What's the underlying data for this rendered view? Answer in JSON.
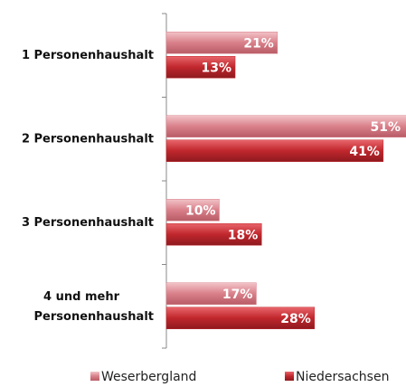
{
  "chart_data": {
    "type": "hbar",
    "categories": [
      "1 Personenhaushalt",
      "2 Personenhaushalt",
      "3 Personenhaushalt",
      "4 und mehr\nPersonenhaushalt"
    ],
    "series": [
      {
        "name": "Weserbergland",
        "color": "#d9808a",
        "values": [
          21,
          51,
          10,
          17
        ],
        "value_labels": [
          "21%",
          "51%",
          "10%",
          "17%"
        ]
      },
      {
        "name": "Niedersachsen",
        "color": "#c0272d",
        "values": [
          13,
          41,
          18,
          28
        ],
        "value_labels": [
          "13%",
          "41%",
          "18%",
          "28%"
        ]
      }
    ],
    "xlim": [
      0,
      45.3
    ],
    "legend": "bottom"
  }
}
